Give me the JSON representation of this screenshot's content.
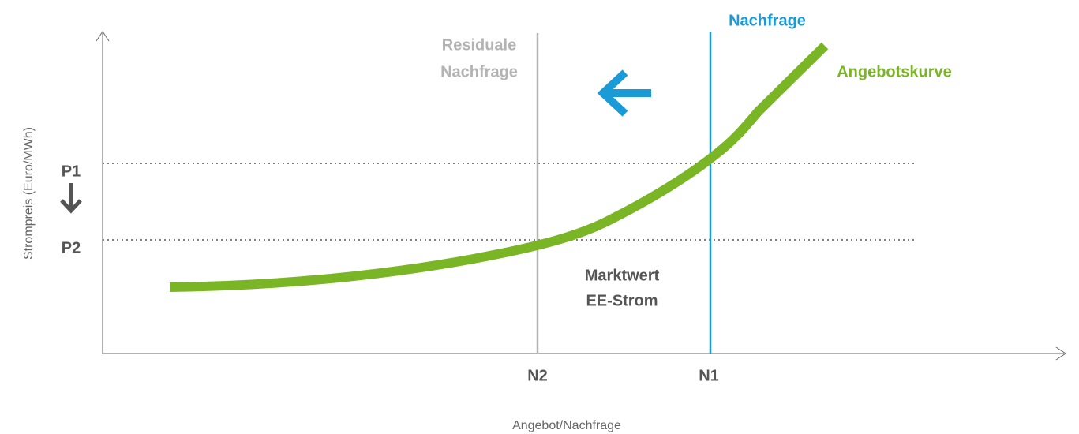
{
  "axes": {
    "y_label": "Strompreis (Euro/MWh)",
    "x_label": "Angebot/Nachfrage"
  },
  "prices": [
    "P1",
    "P2"
  ],
  "quantities": [
    "N2",
    "N1"
  ],
  "lines": {
    "demand": "Nachfrage",
    "residual_demand": [
      "Residuale",
      "Nachfrage"
    ],
    "supply": "Angebotskurve"
  },
  "area_label": [
    "Marktwert",
    "EE-Strom"
  ]
}
